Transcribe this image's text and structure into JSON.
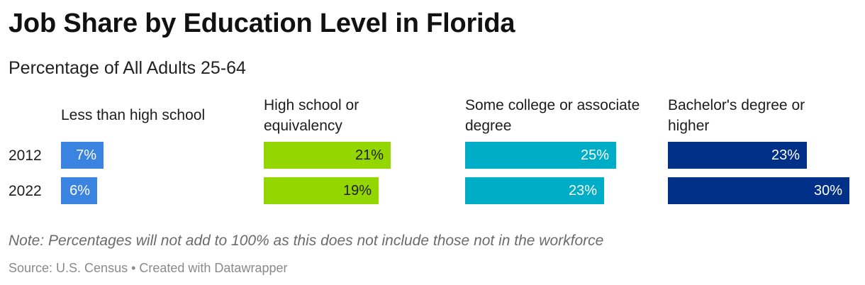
{
  "header": {
    "title": "Job Share by Education Level in Florida",
    "subtitle": "Percentage of All Adults 25-64"
  },
  "footer": {
    "note": "Note: Percentages will not add to 100% as this does not include those not in the workforce",
    "source": "Source: U.S. Census • Created with Datawrapper"
  },
  "chart_data": {
    "type": "bar",
    "orientation": "horizontal",
    "layout": "small-multiples",
    "title": "Job Share by Education Level in Florida",
    "subtitle": "Percentage of All Adults 25-64",
    "categories": [
      "2012",
      "2022"
    ],
    "panels": [
      {
        "label": "Less than high school",
        "color": "#3a83e0",
        "label_color": "#ffffff",
        "values": [
          7,
          6
        ],
        "labels": [
          "7%",
          "6%"
        ]
      },
      {
        "label": "High school or equivalency",
        "color": "#94d600",
        "label_color": "#1d1d1d",
        "values": [
          21,
          19
        ],
        "labels": [
          "21%",
          "19%"
        ]
      },
      {
        "label": "Some college or associate degree",
        "color": "#00adc6",
        "label_color": "#ffffff",
        "values": [
          25,
          23
        ],
        "labels": [
          "25%",
          "23%"
        ]
      },
      {
        "label": "Bachelor's degree or higher",
        "color": "#003088",
        "label_color": "#ffffff",
        "values": [
          23,
          30
        ],
        "labels": [
          "23%",
          "30%"
        ]
      }
    ],
    "xlim": [
      0,
      30
    ],
    "grid": false,
    "legend": "none"
  }
}
